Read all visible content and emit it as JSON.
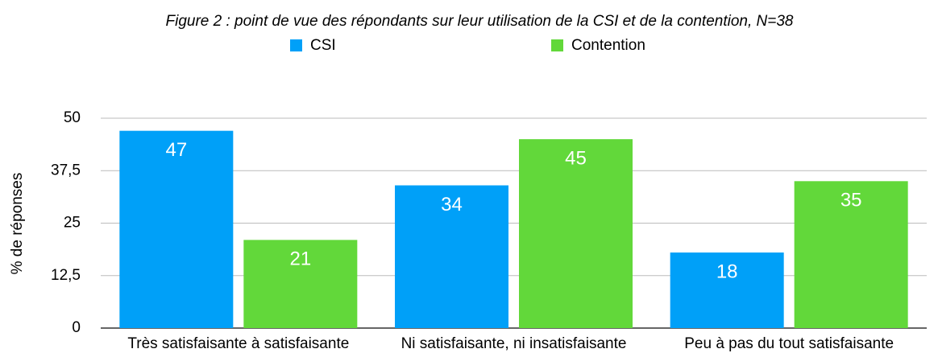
{
  "chart_data": {
    "type": "bar",
    "title": "Figure 2 : point de vue des répondants sur leur utilisation de la CSI et de la contention, N=38",
    "y_label": "% de réponses",
    "categories": [
      "Très satisfaisante à satisfaisante",
      "Ni satisfaisante, ni insatisfaisante",
      "Peu à pas du tout satisfaisante"
    ],
    "series": [
      {
        "name": "CSI",
        "color": "#00a0f8",
        "values": [
          47,
          34,
          18
        ]
      },
      {
        "name": "Contention",
        "color": "#62d83a",
        "values": [
          21,
          45,
          35
        ]
      }
    ],
    "ylim": [
      0,
      50
    ],
    "yticks": [
      0,
      {
        "value": 12.5,
        "label": "12,5"
      },
      25,
      {
        "value": 37.5,
        "label": "37,5"
      },
      50
    ],
    "grid": true,
    "legend": "top"
  }
}
